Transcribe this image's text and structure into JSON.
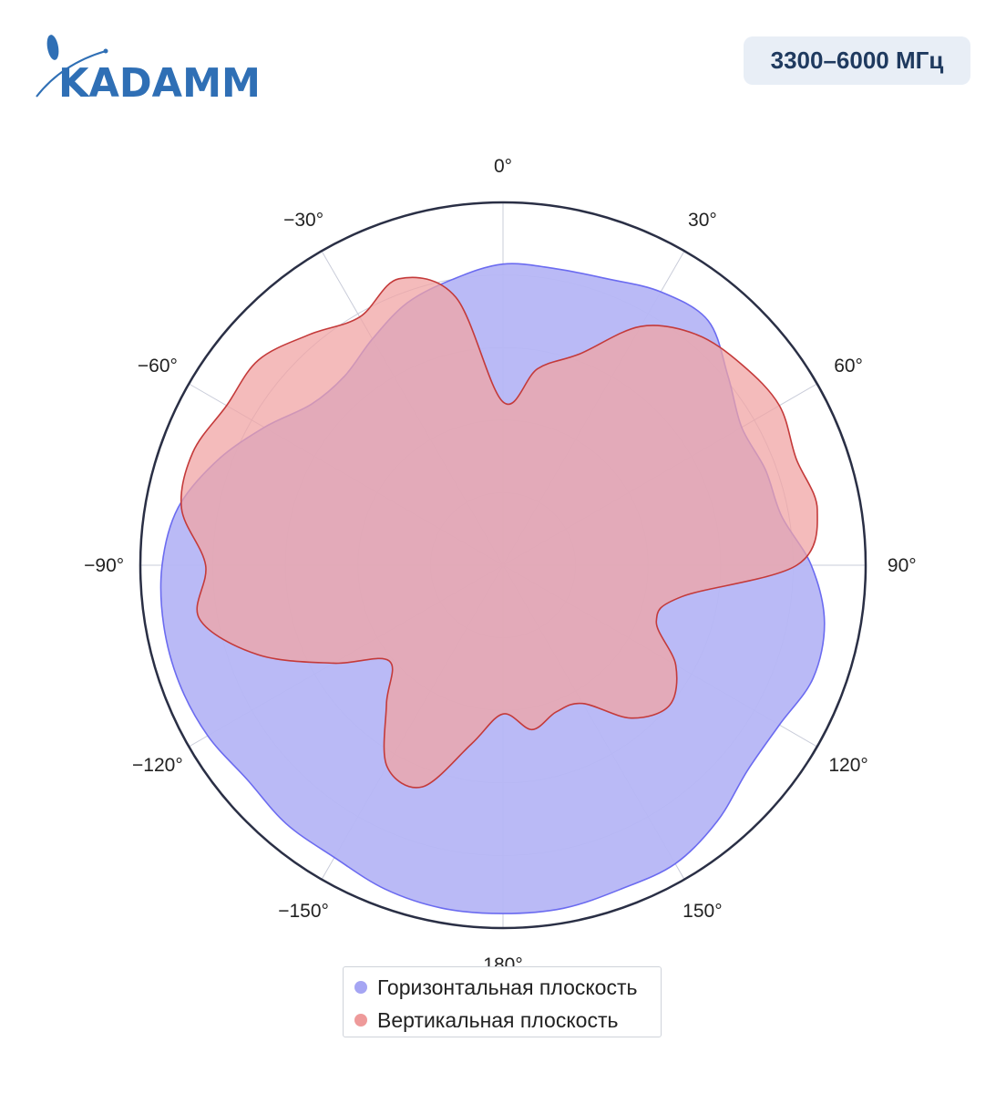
{
  "brand": {
    "logo_text": "KADAMM"
  },
  "badge": {
    "band": "3300–6000 МГц"
  },
  "chart_data": {
    "type": "polar",
    "title": "",
    "angular_axis": {
      "direction": "clockwise",
      "zero_at": "top",
      "ticks": [
        0,
        30,
        60,
        90,
        120,
        150,
        180,
        -150,
        -120,
        -90,
        -60,
        -30
      ],
      "tick_labels": [
        "0°",
        "30°",
        "60°",
        "90°",
        "120°",
        "150°",
        "180°",
        "−150°",
        "−120°",
        "−90°",
        "−60°",
        "−30°"
      ]
    },
    "radial_axis": {
      "range": [
        0,
        1
      ],
      "grid": [
        0.2,
        0.4,
        0.6,
        0.8
      ],
      "tick_labels_visible": false
    },
    "legend_placement": "bottom-center",
    "series": [
      {
        "name": "Горизонтальная плоскость",
        "color": "#6b6bf0",
        "fill": "#b6b6f6",
        "angles_deg": [
          0,
          10,
          20,
          30,
          40,
          50,
          60,
          70,
          80,
          90,
          100,
          110,
          120,
          130,
          140,
          150,
          160,
          170,
          180,
          190,
          200,
          210,
          220,
          230,
          240,
          250,
          260,
          270,
          280,
          290,
          300,
          310,
          320,
          330,
          340,
          350
        ],
        "r": [
          0.83,
          0.83,
          0.84,
          0.87,
          0.88,
          0.81,
          0.76,
          0.77,
          0.78,
          0.85,
          0.9,
          0.91,
          0.88,
          0.88,
          0.92,
          0.95,
          0.95,
          0.96,
          0.96,
          0.96,
          0.95,
          0.93,
          0.93,
          0.92,
          0.94,
          0.95,
          0.95,
          0.94,
          0.91,
          0.84,
          0.76,
          0.69,
          0.68,
          0.72,
          0.77,
          0.8
        ]
      },
      {
        "name": "Вертикальная плоскость",
        "color": "#c43a3a",
        "fill": "#f0a4a4",
        "angles_deg": [
          0,
          10,
          20,
          30,
          40,
          50,
          60,
          70,
          80,
          90,
          100,
          110,
          120,
          130,
          140,
          150,
          160,
          170,
          180,
          190,
          200,
          210,
          220,
          230,
          240,
          250,
          260,
          270,
          280,
          290,
          300,
          310,
          320,
          330,
          340,
          350
        ],
        "r": [
          0.45,
          0.55,
          0.62,
          0.76,
          0.83,
          0.86,
          0.88,
          0.86,
          0.88,
          0.81,
          0.5,
          0.45,
          0.55,
          0.6,
          0.55,
          0.44,
          0.43,
          0.46,
          0.41,
          0.5,
          0.65,
          0.64,
          0.5,
          0.41,
          0.54,
          0.72,
          0.85,
          0.82,
          0.9,
          0.91,
          0.88,
          0.88,
          0.83,
          0.79,
          0.84,
          0.75
        ]
      }
    ]
  },
  "legend": {
    "items": [
      {
        "label": "Горизонтальная плоскость",
        "color": "#a5a5f3"
      },
      {
        "label": "Вертикальная плоскость",
        "color": "#ee9a9a"
      }
    ]
  }
}
